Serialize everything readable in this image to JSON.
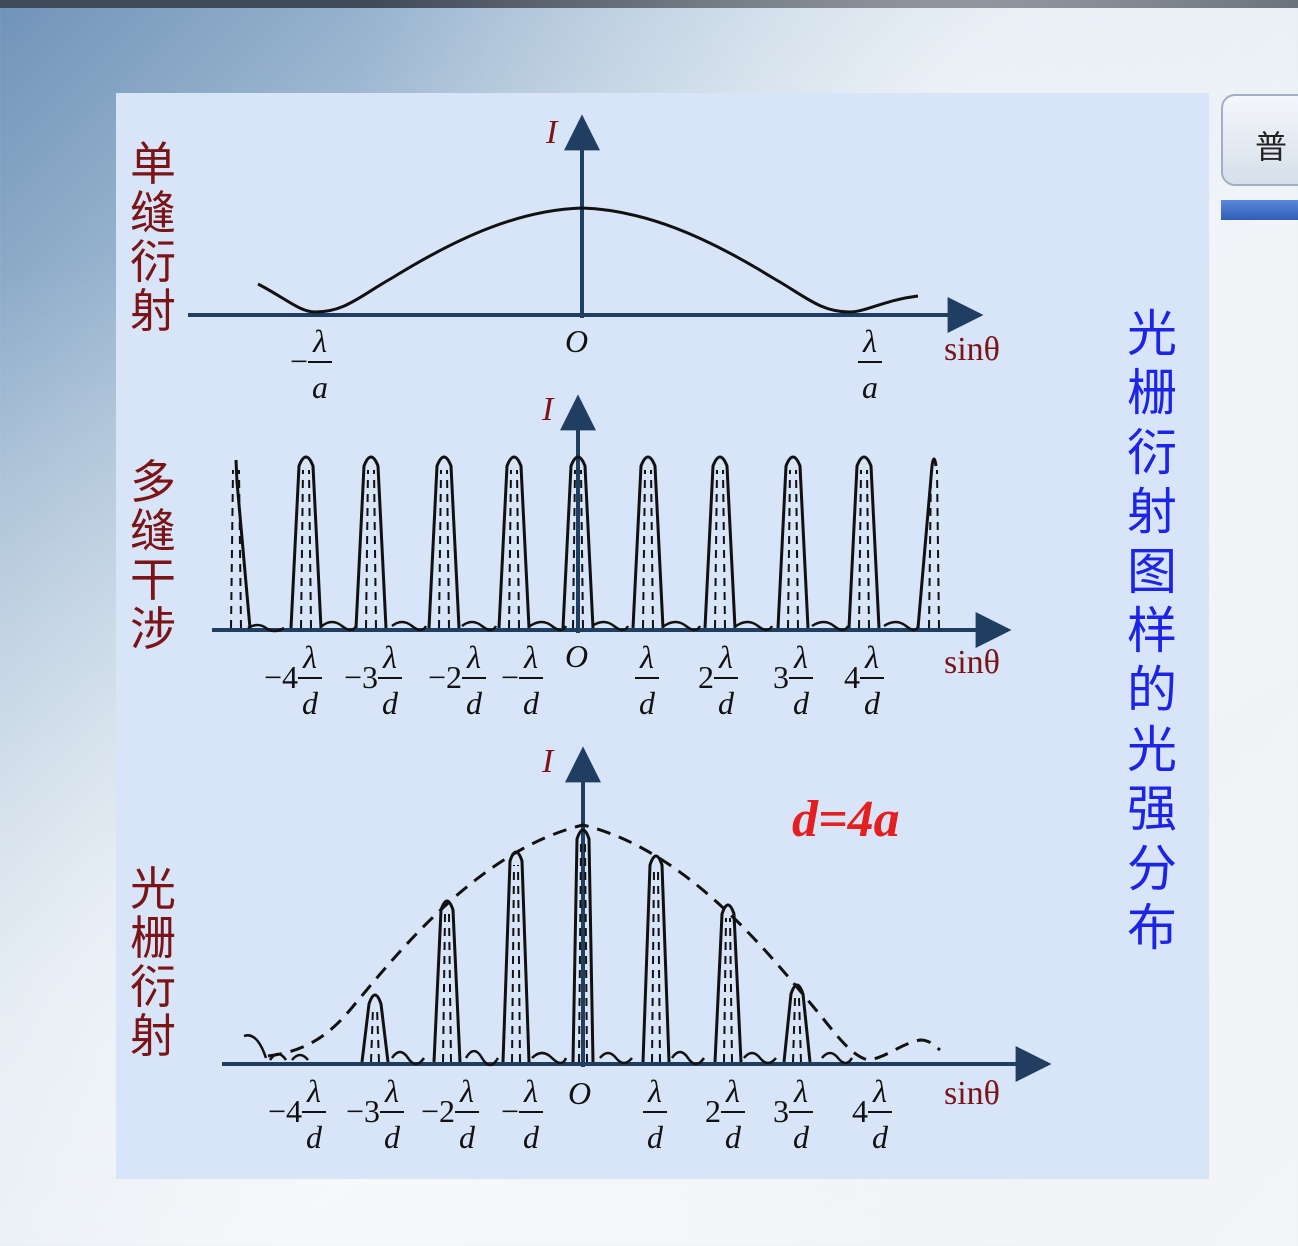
{
  "side_tab": {
    "label": "普"
  },
  "title_vertical": "光栅衍射图样的光强分布",
  "panels": {
    "single": {
      "row_label": "单缝衍射",
      "y_axis": "I",
      "x_axis": "sinθ",
      "origin": "O",
      "ticks": [
        {
          "coef": "−",
          "num": "λ",
          "den": "a"
        },
        {
          "coef": "",
          "num": "λ",
          "den": "a"
        }
      ]
    },
    "multi": {
      "row_label": "多缝干涉",
      "y_axis": "I",
      "x_axis": "sinθ",
      "origin": "O",
      "ticks": [
        {
          "coef": "−4",
          "num": "λ",
          "den": "d"
        },
        {
          "coef": "−3",
          "num": "λ",
          "den": "d"
        },
        {
          "coef": "−2",
          "num": "λ",
          "den": "d"
        },
        {
          "coef": "−",
          "num": "λ",
          "den": "d"
        },
        {
          "coef": "",
          "num": "λ",
          "den": "d"
        },
        {
          "coef": "2",
          "num": "λ",
          "den": "d"
        },
        {
          "coef": "3",
          "num": "λ",
          "den": "d"
        },
        {
          "coef": "4",
          "num": "λ",
          "den": "d"
        }
      ]
    },
    "grating": {
      "row_label": "光栅衍射",
      "y_axis": "I",
      "x_axis": "sinθ",
      "origin": "O",
      "condition": "d=4a",
      "ticks": [
        {
          "coef": "−4",
          "num": "λ",
          "den": "d"
        },
        {
          "coef": "−3",
          "num": "λ",
          "den": "d"
        },
        {
          "coef": "−2",
          "num": "λ",
          "den": "d"
        },
        {
          "coef": "−",
          "num": "λ",
          "den": "d"
        },
        {
          "coef": "",
          "num": "λ",
          "den": "d"
        },
        {
          "coef": "2",
          "num": "λ",
          "den": "d"
        },
        {
          "coef": "3",
          "num": "λ",
          "den": "d"
        },
        {
          "coef": "4",
          "num": "λ",
          "den": "d"
        }
      ]
    }
  },
  "colors": {
    "panel_bg": "#d8e4f7",
    "axis": "#1f3e62",
    "row_label": "#7b1416",
    "title": "#1d24e6",
    "condition": "#e41f1f"
  }
}
